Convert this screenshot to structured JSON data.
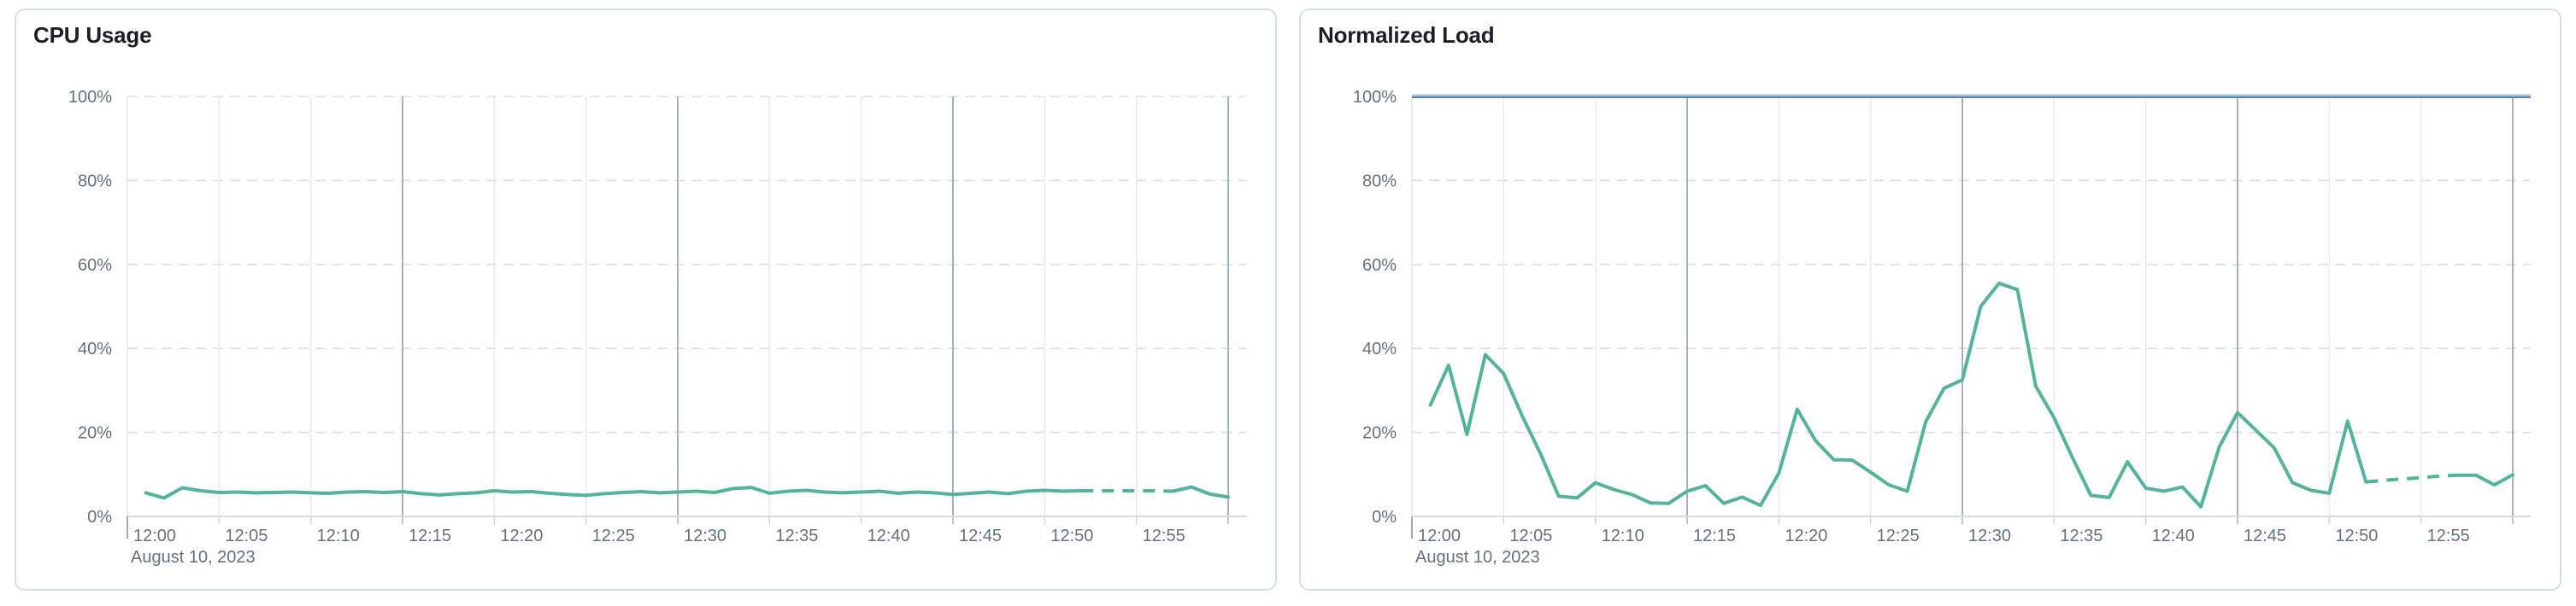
{
  "page": {
    "background_color": "#ffffff",
    "panel_border_color": "#d8dee9"
  },
  "chart_data": [
    {
      "type": "line",
      "title": "CPU Usage",
      "xlabel": "",
      "ylabel": "",
      "ylim": [
        0,
        100
      ],
      "grid": "horizontal-dashed, vertical every 5 min (darker every 15 min)",
      "legend_position": "none",
      "y_tick_labels": [
        "0%",
        "20%",
        "40%",
        "60%",
        "80%",
        "100%"
      ],
      "x_tick_labels": [
        "12:00",
        "12:05",
        "12:10",
        "12:15",
        "12:20",
        "12:25",
        "12:30",
        "12:35",
        "12:40",
        "12:45",
        "12:50",
        "12:55"
      ],
      "date_label": "August 10, 2023",
      "x_minutes_after_noon": {
        "start": 1,
        "step": 1,
        "count": 60
      },
      "has_limit_line": false,
      "series": [
        {
          "name": "cpu-usage-percent",
          "color": "#54B399",
          "dashed_from_minute": 52,
          "dashed_to_minute": 57,
          "values": [
            5.6,
            4.4,
            6.8,
            6.1,
            5.7,
            5.8,
            5.6,
            5.7,
            5.8,
            5.6,
            5.5,
            5.8,
            5.9,
            5.7,
            5.9,
            5.4,
            5.1,
            5.4,
            5.6,
            6.1,
            5.8,
            5.9,
            5.5,
            5.2,
            5.0,
            5.4,
            5.7,
            5.9,
            5.6,
            5.8,
            6.0,
            5.7,
            6.6,
            6.9,
            5.5,
            6.0,
            6.2,
            5.8,
            5.6,
            5.8,
            6.0,
            5.5,
            5.8,
            5.6,
            5.2,
            5.5,
            5.8,
            5.4,
            6.0,
            6.2,
            6.0,
            6.1,
            6.1,
            6.1,
            6.1,
            6.1,
            6.0,
            7.0,
            5.3,
            4.6
          ]
        }
      ]
    },
    {
      "type": "line",
      "title": "Normalized Load",
      "xlabel": "",
      "ylabel": "",
      "ylim": [
        0,
        100
      ],
      "grid": "horizontal-dashed, vertical every 5 min (darker every 15 min)",
      "legend_position": "none",
      "y_tick_labels": [
        "0%",
        "20%",
        "40%",
        "60%",
        "80%",
        "100%"
      ],
      "x_tick_labels": [
        "12:00",
        "12:05",
        "12:10",
        "12:15",
        "12:20",
        "12:25",
        "12:30",
        "12:35",
        "12:40",
        "12:45",
        "12:50",
        "12:55"
      ],
      "date_label": "August 10, 2023",
      "x_minutes_after_noon": {
        "start": 1,
        "step": 1,
        "count": 60
      },
      "has_limit_line": true,
      "limit_line": {
        "value": 100,
        "color": "#6092C0"
      },
      "series": [
        {
          "name": "normalized-load-percent",
          "color": "#54B399",
          "dashed_from_minute": 52,
          "dashed_to_minute": 57,
          "values": [
            26.5,
            36,
            19.5,
            38.5,
            34,
            24,
            15,
            4.8,
            4.4,
            8,
            6.4,
            5.2,
            3.2,
            3.1,
            6,
            7.3,
            3.1,
            4.6,
            2.6,
            10.3,
            25.5,
            18,
            13.5,
            13.4,
            10.5,
            7.5,
            6,
            22.5,
            30.5,
            32.5,
            50,
            55.5,
            54,
            31,
            23.5,
            14,
            5,
            4.5,
            13,
            6.7,
            6,
            7,
            2.3,
            16.5,
            24.7,
            20.5,
            16.3,
            8,
            6.2,
            5.5,
            22.7,
            8.2,
            8.6,
            8.9,
            9.2,
            9.6,
            9.8,
            9.8,
            7.5,
            9.9
          ]
        }
      ]
    }
  ],
  "style": {
    "grid_dash_color": "#dae0ea",
    "grid_vertical_light": "#e7eaef",
    "grid_vertical_dark": "#aab1bd",
    "axis_line_color": "#d6dbe4",
    "y_axis_line_color": "#e3e7ee",
    "tick_text_color": "#69707d",
    "title_text_color": "#1c1e24"
  }
}
